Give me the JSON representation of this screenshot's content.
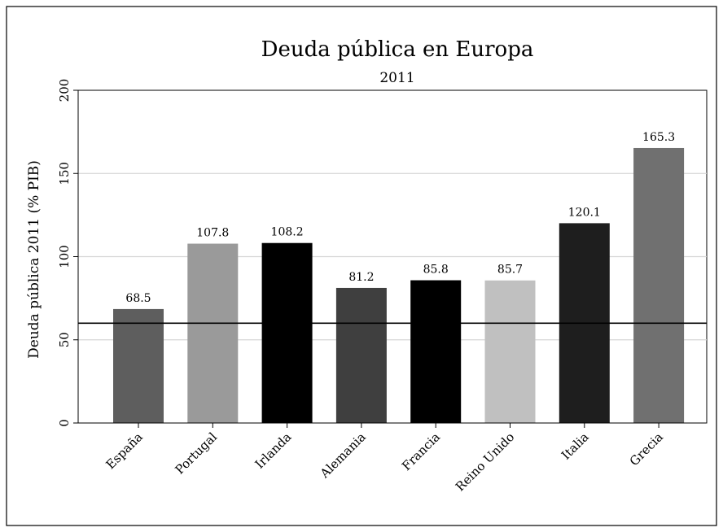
{
  "chart_data": {
    "type": "bar",
    "title": "Deuda pública en Europa",
    "subtitle": "2011",
    "ylabel": "Deuda pública 2011 (% PIB)",
    "xlabel": "",
    "ylim": [
      0,
      200
    ],
    "yticks": [
      0,
      50,
      100,
      150,
      200
    ],
    "grid": true,
    "reference_line": 60,
    "categories": [
      "España",
      "Portugal",
      "Irlanda",
      "Alemania",
      "Francia",
      "Reino Unido",
      "Italia",
      "Grecia"
    ],
    "values": [
      68.5,
      107.8,
      108.2,
      81.2,
      85.8,
      85.7,
      120.1,
      165.3
    ],
    "value_labels": [
      "68.5",
      "107.8",
      "108.2",
      "81.2",
      "85.8",
      "85.7",
      "120.1",
      "165.3"
    ],
    "colors": [
      "#5e5e5e",
      "#9a9a9a",
      "#000000",
      "#3f3f3f",
      "#000000",
      "#c0c0c0",
      "#1e1e1e",
      "#707070"
    ]
  }
}
